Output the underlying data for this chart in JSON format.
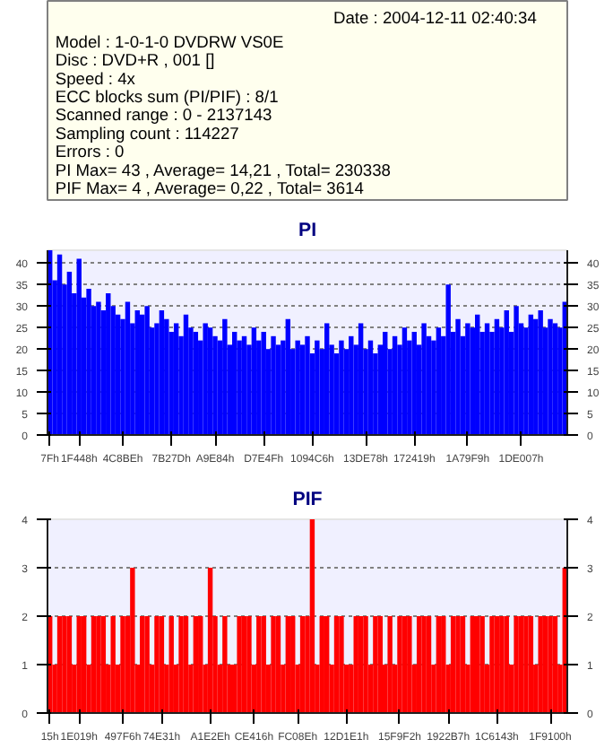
{
  "chart_data": [
    {
      "type": "other",
      "annotations": [
        "Date : 2004-12-11 02:40:34",
        "Model : 1-0-1-0 DVDRW VS0E",
        "Disc : DVD+R , 001 []",
        "Speed : 4x",
        "ECC blocks sum (PI/PIF) : 8/1",
        "Scanned range : 0 - 2137143",
        "Sampling count : 114227",
        "Errors : 0",
        "PI Max= 43 , Average= 14,21 , Total= 230338",
        "PIF Max= 4 , Average= 0,22 , Total= 3614"
      ]
    },
    {
      "type": "bar",
      "title": "PI",
      "ylim": [
        0,
        43
      ],
      "y2lim": [
        0,
        43
      ],
      "yticks": [
        0,
        5,
        10,
        15,
        20,
        25,
        30,
        35,
        40
      ],
      "y2ticks": [
        0,
        5,
        10,
        15,
        20,
        25,
        30,
        35,
        40
      ],
      "grid": "y",
      "categories": [
        "7Fh",
        null,
        null,
        null,
        null,
        null,
        "1F448h",
        null,
        null,
        null,
        null,
        null,
        null,
        null,
        null,
        "4C8BEh",
        null,
        null,
        null,
        null,
        null,
        null,
        null,
        null,
        null,
        "7B27Dh",
        null,
        null,
        null,
        null,
        null,
        null,
        null,
        null,
        "A9E84h",
        null,
        null,
        null,
        null,
        null,
        null,
        null,
        null,
        null,
        "D7E4Fh",
        null,
        null,
        null,
        null,
        null,
        null,
        null,
        null,
        null,
        "1094C6h",
        null,
        null,
        null,
        null,
        null,
        null,
        null,
        null,
        null,
        null,
        "13DE78h",
        null,
        null,
        null,
        null,
        null,
        null,
        null,
        null,
        null,
        "172419h",
        null,
        null,
        null,
        null,
        null,
        null,
        null,
        null,
        null,
        null,
        "1A79F9h",
        null,
        null,
        null,
        null,
        null,
        null,
        null,
        null,
        null,
        null,
        "1DE007h",
        null,
        null,
        null,
        null,
        null,
        null,
        null,
        null,
        null
      ],
      "series": [
        {
          "color": "#0000ff",
          "values": [
            43,
            36,
            42,
            35,
            38,
            33,
            41,
            32,
            34,
            30,
            31,
            29,
            33,
            30,
            28,
            27,
            31,
            26,
            29,
            28,
            30,
            25,
            26,
            29,
            27,
            24,
            26,
            23,
            28,
            25,
            24,
            22,
            26,
            25,
            23,
            22,
            27,
            21,
            24,
            22,
            23,
            21,
            25,
            22,
            24,
            20,
            23,
            21,
            22,
            27,
            20,
            22,
            21,
            23,
            19,
            22,
            20,
            26,
            21,
            19,
            22,
            20,
            23,
            21,
            26,
            20,
            22,
            19,
            21,
            24,
            20,
            23,
            21,
            25,
            22,
            24,
            21,
            26,
            23,
            22,
            25,
            23,
            35,
            24,
            27,
            23,
            26,
            25,
            28,
            24,
            26,
            24,
            27,
            25,
            29,
            24,
            30,
            26,
            25,
            28,
            27,
            29,
            25,
            27,
            26,
            25,
            31
          ]
        }
      ]
    },
    {
      "type": "bar",
      "title": "PIF",
      "ylim": [
        0,
        4
      ],
      "y2lim": [
        0,
        4
      ],
      "yticks": [
        0,
        1,
        2,
        3,
        4
      ],
      "y2ticks": [
        0,
        1,
        2,
        3,
        4
      ],
      "grid": "y",
      "categories": [
        "15h",
        null,
        null,
        null,
        null,
        null,
        "1E019h",
        null,
        null,
        null,
        null,
        null,
        null,
        null,
        null,
        "497F6h",
        null,
        null,
        null,
        null,
        null,
        null,
        null,
        "74E31h",
        null,
        null,
        null,
        null,
        null,
        null,
        null,
        null,
        null,
        "A1E2Eh",
        null,
        null,
        null,
        null,
        null,
        null,
        null,
        null,
        "CE416h",
        null,
        null,
        null,
        null,
        null,
        null,
        null,
        null,
        "FC08Eh",
        null,
        null,
        null,
        null,
        null,
        null,
        null,
        null,
        null,
        "12D1E1h",
        null,
        null,
        null,
        null,
        null,
        null,
        null,
        null,
        null,
        null,
        "15F9F2h",
        null,
        null,
        null,
        null,
        null,
        null,
        null,
        null,
        null,
        "1922B7h",
        null,
        null,
        null,
        null,
        null,
        null,
        null,
        null,
        null,
        "1C6143h",
        null,
        null,
        null,
        null,
        null,
        null,
        null,
        null,
        null,
        null,
        "1F9100h",
        null,
        null,
        null
      ],
      "series": [
        {
          "color": "#ff0000",
          "values": [
            2,
            1,
            2,
            2,
            2,
            1,
            2,
            2,
            1,
            2,
            2,
            2,
            1,
            2,
            1,
            2,
            2,
            3,
            1,
            2,
            2,
            1,
            2,
            2,
            1,
            2,
            1,
            2,
            2,
            1,
            2,
            2,
            1,
            3,
            2,
            1,
            2,
            1,
            1,
            2,
            2,
            2,
            1,
            2,
            2,
            1,
            2,
            2,
            1,
            2,
            2,
            1,
            2,
            2,
            4,
            1,
            2,
            2,
            1,
            2,
            2,
            1,
            1,
            2,
            2,
            2,
            1,
            2,
            2,
            1,
            2,
            1,
            2,
            2,
            2,
            1,
            2,
            2,
            2,
            1,
            2,
            2,
            1,
            2,
            2,
            2,
            1,
            2,
            2,
            2,
            1,
            2,
            2,
            2,
            2,
            1,
            2,
            2,
            2,
            2,
            1,
            2,
            2,
            2,
            2,
            1,
            3
          ]
        }
      ]
    }
  ]
}
